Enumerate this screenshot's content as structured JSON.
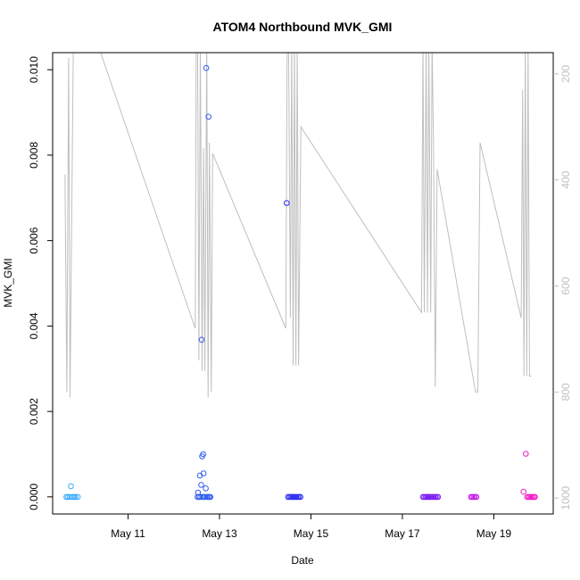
{
  "chart_data": {
    "type": "scatter",
    "title": "ATOM4 Northbound MVK_GMI",
    "xlabel": "Date",
    "ylabel": "MVK_GMI",
    "x_ticks": [
      "May 11",
      "May 13",
      "May 15",
      "May 17",
      "May 19"
    ],
    "x_tick_days": [
      11,
      13,
      15,
      17,
      19
    ],
    "xlim": [
      9.35,
      20.3
    ],
    "y_ticks": [
      "0.000",
      "0.002",
      "0.004",
      "0.006",
      "0.008",
      "0.010"
    ],
    "y_tick_values": [
      0.0,
      0.002,
      0.004,
      0.006,
      0.008,
      0.01
    ],
    "ylim": [
      -0.0004,
      0.0104
    ],
    "y2_ticks": [
      "200",
      "400",
      "600",
      "800",
      "1000"
    ],
    "y2_tick_values": [
      200,
      400,
      600,
      800,
      1000
    ],
    "y2lim": [
      1030,
      160
    ],
    "y2_reversed": true,
    "series": [
      {
        "color": "#33a8ff",
        "points": [
          [
            9.65,
            0.0
          ],
          [
            9.68,
            0.0
          ],
          [
            9.72,
            0.0
          ],
          [
            9.75,
            0.00025
          ],
          [
            9.78,
            0.0
          ],
          [
            9.82,
            0.0
          ],
          [
            9.85,
            0.0
          ],
          [
            9.9,
            0.0
          ]
        ]
      },
      {
        "color": "#2f5cf0",
        "points": [
          [
            12.52,
            0.0
          ],
          [
            12.53,
            0.0001
          ],
          [
            12.55,
            0.0
          ],
          [
            12.57,
            0.0005
          ],
          [
            12.58,
            0.0
          ],
          [
            12.6,
            0.00028
          ],
          [
            12.62,
            0.00095
          ],
          [
            12.63,
            0.0
          ],
          [
            12.64,
            0.001
          ],
          [
            12.65,
            0.00055
          ],
          [
            12.66,
            0.0
          ],
          [
            12.68,
            0.0
          ],
          [
            12.7,
            0.0002
          ],
          [
            12.72,
            0.0
          ],
          [
            12.75,
            0.0
          ],
          [
            12.78,
            0.0
          ],
          [
            12.8,
            0.0
          ],
          [
            12.61,
            0.00368
          ],
          [
            12.71,
            0.01004
          ],
          [
            12.76,
            0.0089
          ]
        ]
      },
      {
        "color": "#2b2bf2",
        "points": [
          [
            14.47,
            0.00688
          ],
          [
            14.5,
            0.0
          ],
          [
            14.53,
            0.0
          ],
          [
            14.56,
            0.0
          ],
          [
            14.59,
            0.0
          ],
          [
            14.62,
            0.0
          ],
          [
            14.65,
            0.0
          ],
          [
            14.68,
            0.0
          ],
          [
            14.71,
            0.0
          ],
          [
            14.74,
            0.0
          ],
          [
            14.77,
            0.0
          ]
        ]
      },
      {
        "color": "#7a1af2",
        "points": [
          [
            17.45,
            0.0
          ],
          [
            17.48,
            0.0
          ],
          [
            17.51,
            0.0
          ],
          [
            17.54,
            0.0
          ],
          [
            17.57,
            0.0
          ],
          [
            17.6,
            0.0
          ],
          [
            17.63,
            0.0
          ],
          [
            17.66,
            0.0
          ],
          [
            17.69,
            0.0
          ],
          [
            17.72,
            0.0
          ],
          [
            17.75,
            0.0
          ],
          [
            17.78,
            0.0
          ]
        ]
      },
      {
        "color": "#c21ae6",
        "points": [
          [
            18.5,
            0.0
          ],
          [
            18.53,
            0.0
          ],
          [
            18.56,
            0.0
          ],
          [
            18.59,
            0.0
          ],
          [
            18.62,
            0.0
          ]
        ]
      },
      {
        "color": "#f21ac7",
        "points": [
          [
            19.65,
            0.00012
          ],
          [
            19.7,
            0.00101
          ],
          [
            19.73,
            0.0
          ],
          [
            19.76,
            0.0
          ],
          [
            19.79,
            0.0
          ],
          [
            19.82,
            0.0
          ],
          [
            19.85,
            0.0
          ],
          [
            19.88,
            0.0
          ],
          [
            19.9,
            0.0
          ]
        ]
      }
    ],
    "secondary_line": {
      "color": "#bfbfbf",
      "axis": "right",
      "points": [
        [
          9.62,
          390
        ],
        [
          9.66,
          800
        ],
        [
          9.7,
          170
        ],
        [
          9.73,
          810
        ],
        [
          9.8,
          160
        ],
        [
          9.86,
          160
        ],
        [
          10.4,
          160
        ],
        [
          12.47,
          680
        ],
        [
          12.49,
          140
        ],
        [
          12.52,
          140
        ],
        [
          12.55,
          740
        ],
        [
          12.58,
          140
        ],
        [
          12.62,
          760
        ],
        [
          12.65,
          340
        ],
        [
          12.68,
          760
        ],
        [
          12.72,
          140
        ],
        [
          12.75,
          810
        ],
        [
          12.78,
          330
        ],
        [
          12.82,
          800
        ],
        [
          12.85,
          350
        ],
        [
          14.45,
          680
        ],
        [
          14.48,
          140
        ],
        [
          14.51,
          140
        ],
        [
          14.55,
          660
        ],
        [
          14.58,
          140
        ],
        [
          14.61,
          750
        ],
        [
          14.64,
          140
        ],
        [
          14.67,
          750
        ],
        [
          14.7,
          140
        ],
        [
          14.73,
          750
        ],
        [
          14.78,
          300
        ],
        [
          17.42,
          650
        ],
        [
          17.45,
          140
        ],
        [
          17.48,
          650
        ],
        [
          17.52,
          140
        ],
        [
          17.55,
          650
        ],
        [
          17.58,
          140
        ],
        [
          17.62,
          650
        ],
        [
          17.65,
          140
        ],
        [
          17.68,
          330
        ],
        [
          17.72,
          790
        ],
        [
          17.76,
          380
        ],
        [
          18.6,
          800
        ],
        [
          18.65,
          800
        ],
        [
          18.7,
          330
        ],
        [
          19.6,
          660
        ],
        [
          19.63,
          230
        ],
        [
          19.66,
          770
        ],
        [
          19.69,
          140
        ],
        [
          19.72,
          770
        ],
        [
          19.75,
          140
        ],
        [
          19.78,
          770
        ],
        [
          19.82,
          770
        ]
      ]
    },
    "grid": false
  }
}
